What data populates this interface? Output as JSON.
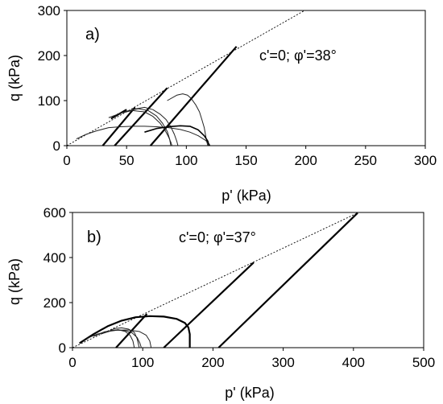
{
  "chart_data": [
    {
      "type": "line",
      "panel_label": "a)",
      "xlabel": "p' (kPa)",
      "ylabel": "q (kPa)",
      "xlim": [
        0,
        300
      ],
      "ylim": [
        0,
        300
      ],
      "xticks": [
        "0",
        "50",
        "100",
        "150",
        "200",
        "250",
        "300"
      ],
      "yticks": [
        "0",
        "100",
        "200",
        "300"
      ],
      "annotation": "c'=0; φ'=38°",
      "series": [
        {
          "style": "dashed",
          "x": [
            0,
            199
          ],
          "y": [
            0,
            300
          ]
        },
        {
          "style": "bold",
          "x": [
            70,
            142
          ],
          "y": [
            0,
            220
          ]
        },
        {
          "style": "bold",
          "x": [
            40,
            84
          ],
          "y": [
            0,
            128
          ]
        },
        {
          "style": "bold",
          "x": [
            30,
            57
          ],
          "y": [
            0,
            85
          ]
        },
        {
          "style": "bold",
          "x": [
            37,
            50
          ],
          "y": [
            60,
            80
          ]
        },
        {
          "style": "thin",
          "x": [
            84,
            92,
            97,
            101,
            104,
            108,
            111,
            113,
            115,
            116,
            117,
            118
          ],
          "y": [
            100,
            112,
            115,
            112,
            105,
            90,
            75,
            58,
            40,
            25,
            10,
            0
          ]
        },
        {
          "style": "thin",
          "x": [
            8,
            16,
            25,
            35,
            45,
            55,
            65,
            75,
            85,
            95,
            103,
            110,
            116,
            119,
            120
          ],
          "y": [
            15,
            25,
            33,
            40,
            42,
            43,
            43,
            42,
            40,
            36,
            30,
            22,
            12,
            4,
            0
          ]
        },
        {
          "style": "thin",
          "x": [
            35,
            45,
            55,
            65,
            72,
            78,
            82,
            85,
            87,
            88
          ],
          "y": [
            62,
            72,
            78,
            75,
            65,
            50,
            35,
            20,
            8,
            0
          ]
        },
        {
          "style": "thin",
          "x": [
            42,
            52,
            60,
            68,
            75,
            80,
            84,
            86,
            87
          ],
          "y": [
            70,
            78,
            82,
            78,
            66,
            50,
            32,
            15,
            0
          ]
        },
        {
          "style": "thin",
          "x": [
            48,
            58,
            65,
            72,
            78,
            83,
            87,
            90,
            92,
            93
          ],
          "y": [
            74,
            82,
            85,
            80,
            70,
            58,
            42,
            25,
            10,
            0
          ]
        },
        {
          "style": "medium",
          "x": [
            65,
            75,
            85,
            95,
            103,
            110,
            115,
            118,
            119
          ],
          "y": [
            30,
            38,
            42,
            44,
            43,
            35,
            22,
            10,
            0
          ]
        }
      ]
    },
    {
      "type": "line",
      "panel_label": "b)",
      "xlabel": "p' (kPa)",
      "ylabel": "q (kPa)",
      "xlim": [
        0,
        500
      ],
      "ylim": [
        0,
        600
      ],
      "xticks": [
        "0",
        "100",
        "200",
        "300",
        "400",
        "500"
      ],
      "yticks": [
        "0",
        "200",
        "400",
        "600"
      ],
      "annotation": "c'=0; φ'=37°",
      "series": [
        {
          "style": "dashed",
          "x": [
            0,
            406
          ],
          "y": [
            0,
            598
          ]
        },
        {
          "style": "bold",
          "x": [
            208,
            406
          ],
          "y": [
            0,
            598
          ]
        },
        {
          "style": "bold",
          "x": [
            130,
            258
          ],
          "y": [
            0,
            378
          ]
        },
        {
          "style": "bold",
          "x": [
            62,
            106
          ],
          "y": [
            0,
            150
          ]
        },
        {
          "style": "bold",
          "x": [
            10,
            30,
            50,
            70,
            90,
            110,
            130,
            148,
            160,
            165,
            167,
            167
          ],
          "y": [
            20,
            60,
            95,
            120,
            135,
            140,
            138,
            128,
            110,
            90,
            60,
            0
          ]
        },
        {
          "style": "thin",
          "x": [
            20,
            35,
            50,
            65,
            80,
            95,
            105,
            110,
            112
          ],
          "y": [
            40,
            60,
            72,
            78,
            78,
            72,
            55,
            30,
            0
          ]
        },
        {
          "style": "thin",
          "x": [
            30,
            45,
            60,
            75,
            85,
            92,
            96,
            98
          ],
          "y": [
            50,
            70,
            78,
            76,
            65,
            45,
            20,
            0
          ]
        },
        {
          "style": "thin",
          "x": [
            40,
            55,
            65,
            75,
            82,
            86,
            88
          ],
          "y": [
            60,
            75,
            80,
            72,
            55,
            30,
            0
          ]
        },
        {
          "style": "thin",
          "x": [
            50,
            60,
            70,
            80,
            88,
            92,
            95
          ],
          "y": [
            70,
            85,
            88,
            82,
            68,
            40,
            0
          ]
        }
      ]
    }
  ]
}
